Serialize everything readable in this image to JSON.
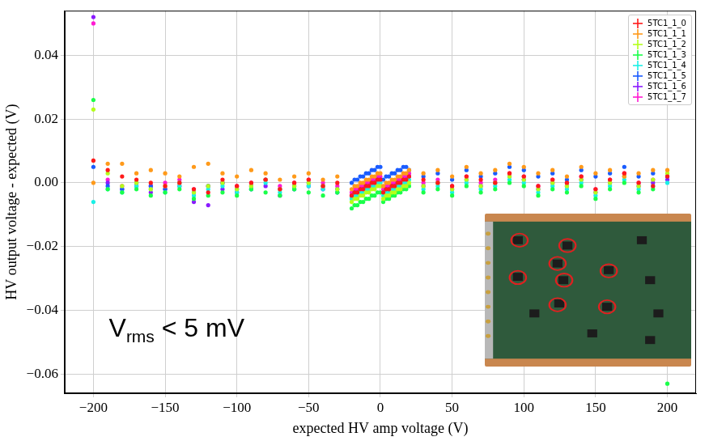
{
  "chart_data": {
    "type": "scatter",
    "x_label": "expected HV amp voltage (V)",
    "y_label": "HV output voltage - expected (V)",
    "annotation": {
      "text": "V",
      "subscript": "rms",
      "suffix": " < 5 mV"
    },
    "xlim": [
      -220,
      220
    ],
    "ylim": [
      -0.066,
      0.054
    ],
    "xticks": [
      {
        "value": -200,
        "label": "−200"
      },
      {
        "value": -150,
        "label": "−150"
      },
      {
        "value": -100,
        "label": "−100"
      },
      {
        "value": -50,
        "label": "−50"
      },
      0,
      50,
      100,
      150,
      200
    ],
    "yticks": [
      {
        "value": -0.06,
        "label": "−0.06"
      },
      {
        "value": -0.04,
        "label": "−0.04"
      },
      {
        "value": -0.02,
        "label": "−0.02"
      },
      {
        "value": 0,
        "label": "0.00"
      },
      0.02,
      0.04
    ],
    "grid": true,
    "legend": "upper right",
    "marker": "o",
    "x": [
      -200,
      -190,
      -180,
      -170,
      -160,
      -150,
      -140,
      -130,
      -120,
      -110,
      -100,
      -90,
      -80,
      -70,
      -60,
      -50,
      -40,
      -30,
      -20,
      -18,
      -16,
      -14,
      -12,
      -10,
      -8,
      -6,
      -4,
      -2,
      0,
      2,
      4,
      6,
      8,
      10,
      12,
      14,
      16,
      18,
      20,
      30,
      40,
      50,
      60,
      70,
      80,
      90,
      100,
      110,
      120,
      130,
      140,
      150,
      160,
      170,
      180,
      190,
      200
    ],
    "series": [
      {
        "name": "5TC1_1_0",
        "color": "#ff1a1a",
        "values": [
          0.007,
          0.004,
          0.002,
          0.001,
          0.0,
          -0.001,
          0.0,
          -0.002,
          -0.003,
          0.001,
          -0.001,
          0.0,
          0.001,
          -0.002,
          0.0,
          0.001,
          -0.001,
          0.0,
          -0.004,
          -0.003,
          -0.003,
          -0.002,
          -0.002,
          -0.001,
          -0.001,
          0.0,
          0.0,
          0.001,
          0.001,
          -0.003,
          -0.002,
          -0.002,
          -0.001,
          -0.001,
          0.0,
          0.0,
          0.001,
          0.001,
          0.002,
          0.001,
          0.0,
          -0.001,
          0.002,
          0.001,
          0.0,
          0.003,
          0.002,
          -0.001,
          0.001,
          0.0,
          0.002,
          -0.002,
          0.001,
          0.003,
          0.0,
          -0.001,
          0.002
        ]
      },
      {
        "name": "5TC1_1_1",
        "color": "#ff9a1a",
        "values": [
          0.0,
          0.006,
          0.006,
          0.003,
          0.004,
          0.003,
          0.002,
          0.005,
          0.006,
          0.003,
          0.002,
          0.004,
          0.003,
          0.001,
          0.002,
          0.003,
          0.001,
          0.002,
          -0.002,
          -0.001,
          -0.001,
          0.0,
          0.0,
          0.001,
          0.001,
          0.002,
          0.002,
          0.003,
          0.003,
          -0.001,
          0.0,
          0.0,
          0.001,
          0.001,
          0.002,
          0.002,
          0.003,
          0.003,
          0.004,
          0.003,
          0.004,
          0.002,
          0.005,
          0.003,
          0.004,
          0.006,
          0.005,
          0.003,
          0.004,
          0.002,
          0.005,
          0.003,
          0.004,
          0.002,
          0.003,
          0.004,
          0.004
        ]
      },
      {
        "name": "5TC1_1_2",
        "color": "#b4ff1a",
        "values": [
          0.023,
          0.003,
          -0.001,
          0.0,
          -0.002,
          -0.001,
          0.0,
          -0.003,
          -0.001,
          0.0,
          -0.002,
          -0.001,
          0.001,
          -0.002,
          -0.001,
          0.0,
          -0.001,
          -0.002,
          -0.006,
          -0.005,
          -0.005,
          -0.004,
          -0.004,
          -0.003,
          -0.003,
          -0.002,
          -0.002,
          -0.001,
          -0.001,
          -0.005,
          -0.004,
          -0.004,
          -0.003,
          -0.003,
          -0.002,
          -0.002,
          -0.001,
          -0.001,
          0.0,
          -0.001,
          0.0,
          -0.002,
          0.001,
          -0.001,
          0.0,
          0.002,
          0.001,
          -0.002,
          0.0,
          -0.001,
          0.001,
          -0.003,
          0.0,
          0.002,
          -0.001,
          0.001,
          0.003
        ]
      },
      {
        "name": "5TC1_1_3",
        "color": "#1aff4a",
        "values": [
          0.026,
          -0.002,
          -0.003,
          -0.002,
          -0.004,
          -0.003,
          -0.002,
          -0.005,
          -0.004,
          -0.003,
          -0.004,
          -0.002,
          -0.003,
          -0.004,
          -0.002,
          -0.003,
          -0.004,
          -0.003,
          -0.008,
          -0.007,
          -0.007,
          -0.006,
          -0.006,
          -0.005,
          -0.005,
          -0.004,
          -0.004,
          -0.003,
          -0.003,
          -0.006,
          -0.005,
          -0.005,
          -0.004,
          -0.004,
          -0.003,
          -0.003,
          -0.002,
          -0.002,
          -0.001,
          -0.003,
          -0.002,
          -0.004,
          -0.001,
          -0.003,
          -0.002,
          0.0,
          -0.001,
          -0.004,
          -0.002,
          -0.003,
          -0.001,
          -0.005,
          -0.002,
          0.0,
          -0.003,
          -0.002,
          -0.063
        ]
      },
      {
        "name": "5TC1_1_4",
        "color": "#1af0e6",
        "values": [
          -0.006,
          -0.002,
          -0.003,
          -0.001,
          -0.002,
          -0.003,
          -0.001,
          -0.004,
          -0.002,
          -0.001,
          -0.003,
          -0.002,
          0.0,
          -0.003,
          -0.002,
          -0.001,
          -0.002,
          -0.003,
          -0.005,
          -0.004,
          -0.004,
          -0.003,
          -0.003,
          -0.002,
          -0.002,
          -0.001,
          -0.001,
          0.0,
          0.0,
          -0.004,
          -0.003,
          -0.003,
          -0.002,
          -0.002,
          -0.001,
          -0.001,
          0.0,
          0.0,
          0.001,
          -0.002,
          -0.001,
          -0.003,
          0.0,
          -0.002,
          -0.001,
          0.001,
          0.0,
          -0.003,
          -0.001,
          -0.002,
          0.0,
          -0.004,
          -0.001,
          0.001,
          -0.002,
          -0.001,
          0.0
        ]
      },
      {
        "name": "5TC1_1_5",
        "color": "#1a5cff",
        "values": [
          0.005,
          -0.001,
          -0.002,
          0.0,
          -0.001,
          -0.002,
          0.0,
          -0.003,
          -0.001,
          0.0,
          -0.002,
          -0.001,
          0.001,
          -0.002,
          -0.001,
          0.0,
          -0.001,
          -0.002,
          0.0,
          0.001,
          0.001,
          0.002,
          0.002,
          0.003,
          0.003,
          0.004,
          0.004,
          0.005,
          0.005,
          0.001,
          0.002,
          0.002,
          0.003,
          0.003,
          0.004,
          0.004,
          0.005,
          0.005,
          0.004,
          0.002,
          0.003,
          0.001,
          0.004,
          0.002,
          0.003,
          0.005,
          0.004,
          0.002,
          0.003,
          0.001,
          0.004,
          0.002,
          0.003,
          0.005,
          0.002,
          0.003,
          0.002
        ]
      },
      {
        "name": "5TC1_1_6",
        "color": "#8a1aff",
        "values": [
          0.052,
          0.0,
          -0.002,
          -0.001,
          -0.003,
          -0.002,
          -0.001,
          -0.006,
          -0.007,
          -0.002,
          -0.003,
          -0.002,
          -0.001,
          -0.004,
          -0.002,
          -0.001,
          -0.002,
          -0.003,
          -0.004,
          -0.003,
          -0.003,
          -0.002,
          -0.002,
          -0.001,
          -0.001,
          0.0,
          0.0,
          0.001,
          0.001,
          -0.003,
          -0.002,
          -0.002,
          -0.001,
          -0.001,
          0.0,
          0.0,
          0.001,
          0.001,
          0.002,
          -0.001,
          0.0,
          -0.002,
          0.001,
          -0.001,
          0.0,
          0.002,
          0.001,
          -0.002,
          0.0,
          -0.001,
          0.001,
          -0.003,
          0.0,
          0.002,
          -0.001,
          0.0,
          0.001
        ]
      },
      {
        "name": "5TC1_1_7",
        "color": "#ff1ad2",
        "values": [
          0.05,
          0.001,
          -0.001,
          0.0,
          -0.001,
          0.0,
          0.001,
          -0.002,
          -0.001,
          0.0,
          -0.001,
          0.0,
          0.001,
          -0.001,
          0.0,
          0.001,
          0.0,
          -0.001,
          -0.003,
          -0.002,
          -0.002,
          -0.001,
          -0.001,
          0.0,
          0.0,
          0.001,
          0.001,
          0.002,
          0.002,
          -0.002,
          -0.001,
          -0.001,
          0.0,
          0.0,
          0.001,
          0.001,
          0.002,
          0.002,
          0.003,
          0.0,
          0.001,
          -0.001,
          0.002,
          0.0,
          0.001,
          0.003,
          0.002,
          -0.001,
          0.001,
          0.0,
          0.002,
          -0.002,
          0.001,
          0.003,
          0.0,
          0.001,
          0.002
        ]
      }
    ]
  }
}
